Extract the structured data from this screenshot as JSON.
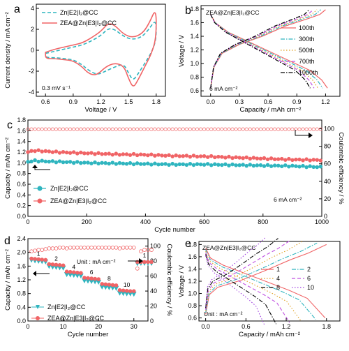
{
  "chart_data": [
    {
      "panel": "a",
      "type": "line",
      "xlabel": "Voltage / V",
      "ylabel": "Current density / mA cm⁻²",
      "xlim": [
        0.5,
        1.9
      ],
      "ylim": [
        -4.4,
        4.4
      ],
      "xticks": [
        "0.6",
        "0.9",
        "1.2",
        "1.5",
        "1.8"
      ],
      "yticks": [
        "-4",
        "-2",
        "0",
        "2",
        "4"
      ],
      "annotation": "0.3 mV s⁻¹",
      "legend_position": "top-left",
      "series": [
        {
          "name": "Zn|E2|I₂@CC",
          "color": "#2fb5bf",
          "dash": "dashed",
          "x": [
            0.6,
            0.7,
            0.8,
            0.9,
            1.0,
            1.1,
            1.2,
            1.28,
            1.35,
            1.45,
            1.55,
            1.65,
            1.72,
            1.8,
            1.8,
            1.75,
            1.68,
            1.6,
            1.55,
            1.5,
            1.45,
            1.35,
            1.25,
            1.18,
            1.12,
            1.05,
            1.0,
            0.9,
            0.8,
            0.7,
            0.6,
            0.6
          ],
          "y": [
            -0.3,
            -0.1,
            0.1,
            0.3,
            0.5,
            0.9,
            1.4,
            2.1,
            2.0,
            1.3,
            1.0,
            1.3,
            2.0,
            3.0,
            1.0,
            -0.2,
            -1.2,
            -2.3,
            -2.9,
            -2.2,
            -1.3,
            -1.6,
            -2.0,
            -2.3,
            -2.2,
            -1.8,
            -1.4,
            -0.9,
            -0.8,
            -0.7,
            -0.7,
            -0.3
          ]
        },
        {
          "name": "ZEA@Zn|E3|I₂@CC",
          "color": "#f06466",
          "dash": "solid",
          "x": [
            0.6,
            0.7,
            0.8,
            0.9,
            1.0,
            1.1,
            1.2,
            1.28,
            1.35,
            1.45,
            1.55,
            1.65,
            1.72,
            1.8,
            1.8,
            1.75,
            1.68,
            1.6,
            1.55,
            1.5,
            1.45,
            1.35,
            1.25,
            1.18,
            1.12,
            1.05,
            1.0,
            0.9,
            0.8,
            0.7,
            0.6,
            0.6
          ],
          "y": [
            -0.2,
            0.1,
            0.3,
            0.5,
            0.7,
            1.2,
            1.8,
            2.6,
            2.4,
            1.5,
            1.2,
            1.6,
            2.5,
            4.1,
            1.2,
            -0.3,
            -1.5,
            -2.9,
            -3.6,
            -2.7,
            -1.5,
            -1.2,
            -1.6,
            -2.2,
            -2.4,
            -2.1,
            -1.6,
            -1.0,
            -0.9,
            -0.8,
            -0.8,
            -0.2
          ]
        }
      ]
    },
    {
      "panel": "b",
      "type": "line",
      "xlabel": "Capacity / mAh cm⁻²",
      "ylabel": "Voltage / V",
      "xlim": [
        -0.1,
        1.35
      ],
      "ylim": [
        0.52,
        1.85
      ],
      "xticks": [
        "0.0",
        "0.3",
        "0.6",
        "0.9",
        "1.2"
      ],
      "yticks": [
        "0.6",
        "0.8",
        "1.0",
        "1.2",
        "1.4",
        "1.6",
        "1.8"
      ],
      "title": "ZEA@Zn|E3|I₂@CC",
      "annotation": "6 mA cm⁻²",
      "legend_position": "right",
      "series": [
        {
          "name": "100th",
          "color": "#f06466",
          "dash": "solid",
          "cap": 1.2,
          "dcap": 1.22
        },
        {
          "name": "300th",
          "color": "#2fb5bf",
          "dash": "dashdot",
          "cap": 1.15,
          "dcap": 1.17
        },
        {
          "name": "500th",
          "color": "#e0a020",
          "dash": "dotted",
          "cap": 1.11,
          "dcap": 1.12
        },
        {
          "name": "700th",
          "color": "#c050e0",
          "dash": "dashed",
          "cap": 1.07,
          "dcap": 1.08
        },
        {
          "name": "1000th",
          "color": "#000000",
          "dash": "dashdot",
          "cap": 1.03,
          "dcap": 1.04
        }
      ]
    },
    {
      "panel": "c",
      "type": "scatter",
      "xlabel": "Cycle number",
      "ylabel": "Capacity / mAh cm⁻²",
      "ylabel_right": "Coulombic efficiency / %",
      "xlim": [
        0,
        1000
      ],
      "ylim": [
        0,
        1.8
      ],
      "ylim_right": [
        0,
        110
      ],
      "xticks": [
        "0",
        "200",
        "400",
        "600",
        "800",
        "1000"
      ],
      "yticks": [
        "0.0",
        "0.2",
        "0.4",
        "0.6",
        "0.8",
        "1.0",
        "1.2",
        "1.4",
        "1.6",
        "1.8"
      ],
      "yticks_right": [
        "0",
        "20",
        "40",
        "60",
        "80",
        "100"
      ],
      "annotation": "6 mA cm⁻²",
      "legend_position": "bottom-left",
      "series": [
        {
          "name": "Zn|E2|I₂@CC",
          "color": "#2fb5bf",
          "marker": "circle",
          "x": [
            0,
            20,
            50,
            100,
            200,
            300,
            400,
            500,
            600,
            700,
            800,
            900,
            1000
          ],
          "y": [
            1.02,
            1.04,
            1.03,
            1.02,
            1.0,
            0.99,
            0.98,
            0.97,
            0.97,
            0.96,
            0.95,
            0.94,
            0.92
          ]
        },
        {
          "name": "ZEA@Zn|E3|I₂@CC",
          "color": "#f06466",
          "marker": "circle",
          "x": [
            0,
            20,
            50,
            100,
            200,
            300,
            400,
            500,
            600,
            700,
            800,
            900,
            1000
          ],
          "y": [
            1.2,
            1.23,
            1.22,
            1.2,
            1.18,
            1.16,
            1.15,
            1.13,
            1.12,
            1.1,
            1.08,
            1.06,
            1.05
          ]
        },
        {
          "name": "Coulombic efficiency",
          "color": "#f06466",
          "marker": "circle-open",
          "axis": "right",
          "x": [
            0,
            1000
          ],
          "y": [
            99.5,
            99.5
          ]
        }
      ]
    },
    {
      "panel": "d",
      "type": "scatter",
      "xlabel": "Cycle number",
      "ylabel": "Capacity / mAh cm⁻²",
      "ylabel_right": "Coulombic efficiency / %",
      "xlim": [
        0,
        34
      ],
      "ylim": [
        0,
        2.4
      ],
      "ylim_right": [
        0,
        110
      ],
      "xticks": [
        "0",
        "10",
        "20",
        "30"
      ],
      "yticks": [
        "0.0",
        "0.4",
        "0.8",
        "1.2",
        "1.6",
        "2.0",
        "2.4"
      ],
      "yticks_right": [
        "0",
        "20",
        "40",
        "60",
        "80",
        "100"
      ],
      "title": "Unit : mA cm⁻²",
      "rate_labels": [
        "1",
        "2",
        "4",
        "6",
        "8",
        "10",
        "1"
      ],
      "legend_position": "bottom-left",
      "series": [
        {
          "name": "Zn|E2|I₂@CC",
          "color": "#2fb5bf",
          "marker": "triangle-down",
          "y": [
            1.78,
            1.76,
            1.75,
            1.74,
            1.73,
            1.6,
            1.58,
            1.57,
            1.56,
            1.55,
            1.36,
            1.35,
            1.34,
            1.33,
            1.32,
            1.18,
            1.17,
            1.16,
            1.15,
            1.14,
            1.0,
            0.99,
            0.98,
            0.97,
            0.96,
            0.82,
            0.81,
            0.8,
            0.8,
            0.79,
            1.68,
            1.69,
            1.69,
            1.69,
            1.69
          ]
        },
        {
          "name": "ZEA@Zn|E3|I₂@CC",
          "color": "#f06466",
          "marker": "circle",
          "y": [
            1.82,
            1.81,
            1.8,
            1.79,
            1.78,
            1.66,
            1.65,
            1.64,
            1.63,
            1.62,
            1.44,
            1.43,
            1.42,
            1.41,
            1.4,
            1.26,
            1.25,
            1.24,
            1.23,
            1.22,
            1.08,
            1.07,
            1.06,
            1.05,
            1.04,
            0.9,
            0.89,
            0.88,
            0.87,
            0.87,
            1.72,
            1.72,
            1.72,
            1.72,
            1.72
          ]
        },
        {
          "name": "Coulombic efficiency",
          "color": "#f06466",
          "marker": "circle-open",
          "axis": "right",
          "y": [
            93,
            94,
            95,
            95,
            96,
            97,
            97,
            97,
            98,
            98,
            97,
            98,
            98,
            98,
            98,
            98,
            98,
            98,
            98,
            98,
            98,
            98,
            98,
            98,
            98,
            97,
            98,
            98,
            98,
            98,
            70,
            93,
            95,
            95,
            95
          ]
        }
      ]
    },
    {
      "panel": "e",
      "type": "line",
      "xlabel": "Capacity / mAh cm⁻²",
      "ylabel": "Voltage / V",
      "xlim": [
        -0.1,
        2.0
      ],
      "ylim": [
        0.55,
        1.85
      ],
      "xticks": [
        "0.0",
        "0.6",
        "1.2",
        "1.8"
      ],
      "yticks": [
        "0.6",
        "0.8",
        "1.0",
        "1.2",
        "1.4",
        "1.6",
        "1.8"
      ],
      "title": "ZEA@Zn|E3|I₂@CC",
      "annotation": "Unit : mA cm⁻²",
      "legend_position": "right",
      "series": [
        {
          "name": "1",
          "color": "#f06466",
          "dash": "solid",
          "cap": 1.8,
          "dcap": 1.78
        },
        {
          "name": "2",
          "color": "#2fb5bf",
          "dash": "dashdot",
          "cap": 1.66,
          "dcap": 1.64
        },
        {
          "name": "4",
          "color": "#e0a020",
          "dash": "dotted",
          "cap": 1.44,
          "dcap": 1.42
        },
        {
          "name": "6",
          "color": "#c050e0",
          "dash": "dashed",
          "cap": 1.27,
          "dcap": 1.25
        },
        {
          "name": "8",
          "color": "#000000",
          "dash": "dashdot",
          "cap": 1.08,
          "dcap": 1.05
        },
        {
          "name": "10",
          "color": "#a040e0",
          "dash": "dotted",
          "cap": 0.9,
          "dcap": 0.88
        }
      ]
    }
  ]
}
